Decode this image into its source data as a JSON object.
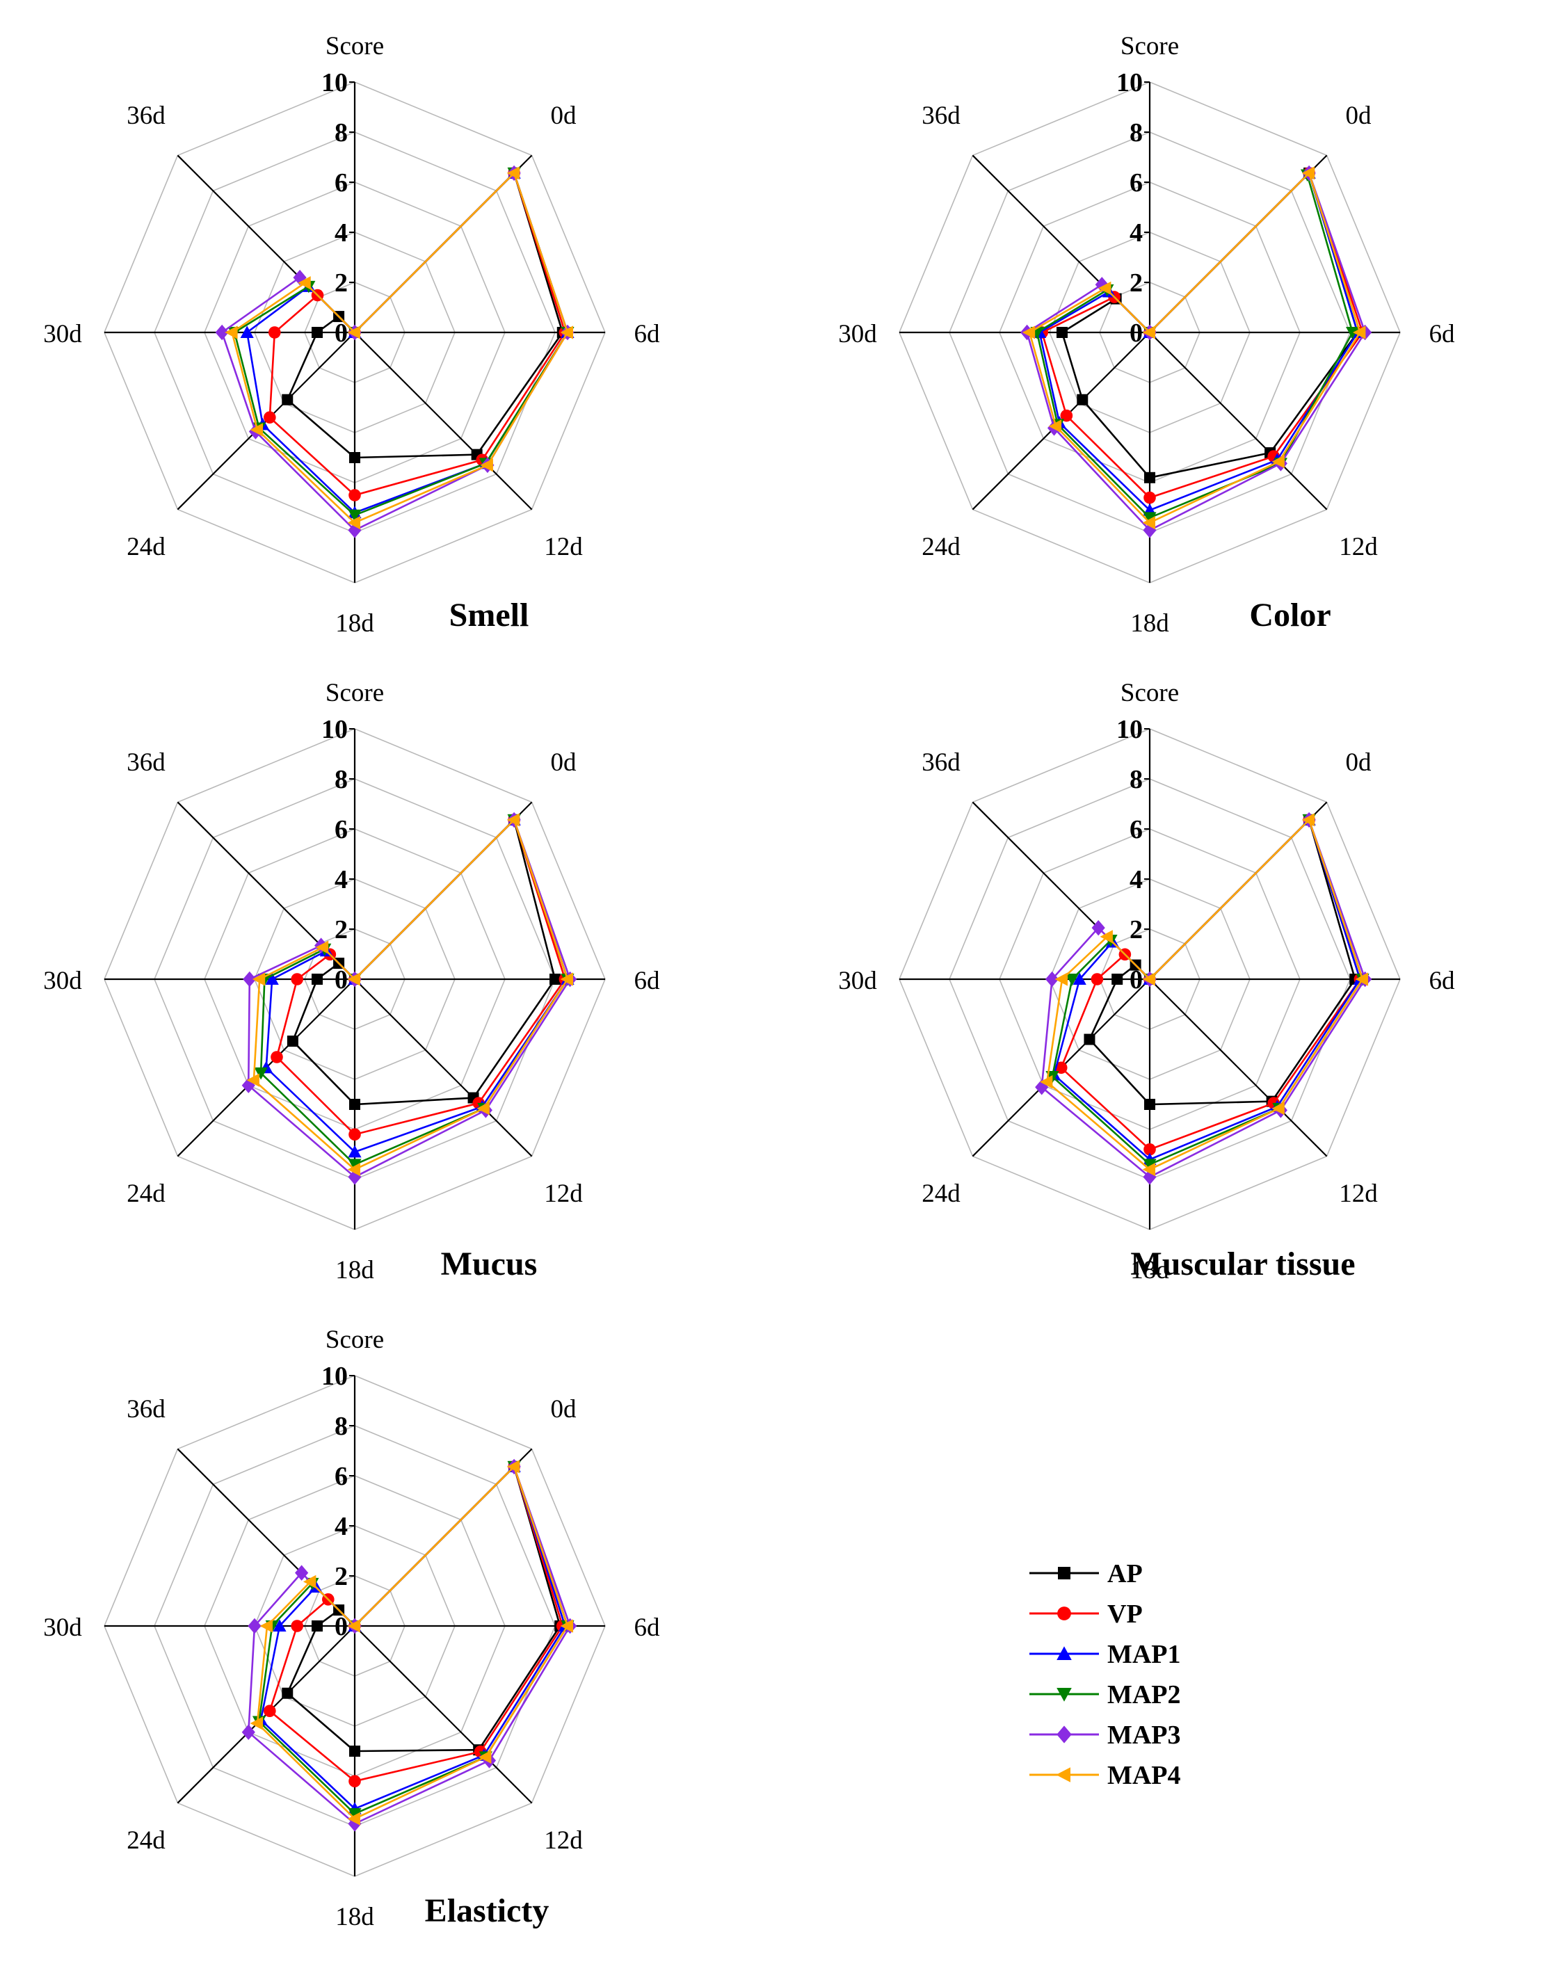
{
  "figure": {
    "score_label": "Score",
    "axis_labels": [
      "0d",
      "6d",
      "12d",
      "18d",
      "24d",
      "30d",
      "36d"
    ],
    "tick_values": [
      0,
      2,
      4,
      6,
      8,
      10
    ],
    "legend": [
      {
        "name": "AP",
        "color": "#000000",
        "marker": "square"
      },
      {
        "name": "VP",
        "color": "#ff0000",
        "marker": "circle"
      },
      {
        "name": "MAP1",
        "color": "#0000ff",
        "marker": "triangle-up"
      },
      {
        "name": "MAP2",
        "color": "#008000",
        "marker": "triangle-down"
      },
      {
        "name": "MAP3",
        "color": "#8a2be2",
        "marker": "diamond"
      },
      {
        "name": "MAP4",
        "color": "#ffa500",
        "marker": "triangle-left"
      }
    ]
  },
  "chart_data": [
    {
      "type": "radar",
      "title": "Smell",
      "axes": [
        "0d",
        "6d",
        "12d",
        "18d",
        "24d",
        "30d",
        "36d"
      ],
      "rlim": [
        0,
        10
      ],
      "series": [
        {
          "name": "AP",
          "values": [
            9.0,
            8.3,
            6.9,
            5.0,
            3.8,
            1.5,
            0.9
          ]
        },
        {
          "name": "VP",
          "values": [
            9.0,
            8.4,
            7.2,
            6.5,
            4.8,
            3.2,
            2.1
          ]
        },
        {
          "name": "MAP1",
          "values": [
            9.0,
            8.5,
            7.4,
            7.2,
            5.2,
            4.3,
            2.6
          ]
        },
        {
          "name": "MAP2",
          "values": [
            9.0,
            8.5,
            7.4,
            7.3,
            5.4,
            4.8,
            2.6
          ]
        },
        {
          "name": "MAP3",
          "values": [
            9.0,
            8.5,
            7.5,
            7.9,
            5.6,
            5.3,
            3.1
          ]
        },
        {
          "name": "MAP4",
          "values": [
            9.0,
            8.5,
            7.5,
            7.6,
            5.5,
            4.9,
            2.8
          ]
        }
      ]
    },
    {
      "type": "radar",
      "title": "Color",
      "axes": [
        "0d",
        "6d",
        "12d",
        "18d",
        "24d",
        "30d",
        "36d"
      ],
      "rlim": [
        0,
        10
      ],
      "series": [
        {
          "name": "AP",
          "values": [
            9.0,
            8.3,
            6.8,
            5.8,
            3.8,
            3.5,
            1.9
          ]
        },
        {
          "name": "VP",
          "values": [
            9.0,
            8.5,
            7.0,
            6.6,
            4.7,
            4.3,
            2.0
          ]
        },
        {
          "name": "MAP1",
          "values": [
            9.0,
            8.3,
            7.2,
            7.1,
            5.1,
            4.4,
            2.3
          ]
        },
        {
          "name": "MAP2",
          "values": [
            8.9,
            8.1,
            7.4,
            7.4,
            5.2,
            4.5,
            2.4
          ]
        },
        {
          "name": "MAP3",
          "values": [
            9.0,
            8.6,
            7.4,
            7.9,
            5.4,
            4.9,
            2.7
          ]
        },
        {
          "name": "MAP4",
          "values": [
            9.0,
            8.4,
            7.3,
            7.6,
            5.3,
            4.8,
            2.5
          ]
        }
      ]
    },
    {
      "type": "radar",
      "title": "Mucus",
      "axes": [
        "0d",
        "6d",
        "12d",
        "18d",
        "24d",
        "30d",
        "36d"
      ],
      "rlim": [
        0,
        10
      ],
      "series": [
        {
          "name": "AP",
          "values": [
            9.0,
            8.0,
            6.7,
            5.0,
            3.5,
            1.5,
            0.9
          ]
        },
        {
          "name": "VP",
          "values": [
            9.0,
            8.4,
            7.0,
            6.2,
            4.4,
            2.3,
            1.4
          ]
        },
        {
          "name": "MAP1",
          "values": [
            9.0,
            8.5,
            7.2,
            6.9,
            5.0,
            3.3,
            1.6
          ]
        },
        {
          "name": "MAP2",
          "values": [
            9.0,
            8.5,
            7.3,
            7.4,
            5.3,
            3.6,
            1.7
          ]
        },
        {
          "name": "MAP3",
          "values": [
            9.0,
            8.6,
            7.4,
            7.9,
            6.0,
            4.2,
            1.9
          ]
        },
        {
          "name": "MAP4",
          "values": [
            9.0,
            8.5,
            7.3,
            7.6,
            5.7,
            3.8,
            1.8
          ]
        }
      ]
    },
    {
      "type": "radar",
      "title": "Muscular tissue",
      "axes": [
        "0d",
        "6d",
        "12d",
        "18d",
        "24d",
        "30d",
        "36d"
      ],
      "rlim": [
        0,
        10
      ],
      "series": [
        {
          "name": "AP",
          "values": [
            9.0,
            8.2,
            6.9,
            5.0,
            3.4,
            1.3,
            0.8
          ]
        },
        {
          "name": "VP",
          "values": [
            9.0,
            8.4,
            7.0,
            6.8,
            5.0,
            2.1,
            1.4
          ]
        },
        {
          "name": "MAP1",
          "values": [
            9.0,
            8.4,
            7.2,
            7.2,
            5.4,
            2.8,
            2.1
          ]
        },
        {
          "name": "MAP2",
          "values": [
            9.0,
            8.5,
            7.3,
            7.4,
            5.5,
            3.1,
            2.2
          ]
        },
        {
          "name": "MAP3",
          "values": [
            9.0,
            8.6,
            7.4,
            7.9,
            6.1,
            3.9,
            2.9
          ]
        },
        {
          "name": "MAP4",
          "values": [
            9.0,
            8.5,
            7.3,
            7.6,
            5.8,
            3.5,
            2.4
          ]
        }
      ]
    },
    {
      "type": "radar",
      "title": "Elasticty",
      "axes": [
        "0d",
        "6d",
        "12d",
        "18d",
        "24d",
        "30d",
        "36d"
      ],
      "rlim": [
        0,
        10
      ],
      "series": [
        {
          "name": "AP",
          "values": [
            9.0,
            8.2,
            7.0,
            5.0,
            3.8,
            1.5,
            0.9
          ]
        },
        {
          "name": "VP",
          "values": [
            9.0,
            8.3,
            7.1,
            6.2,
            4.8,
            2.3,
            1.5
          ]
        },
        {
          "name": "MAP1",
          "values": [
            9.0,
            8.4,
            7.3,
            7.3,
            5.3,
            3.0,
            2.2
          ]
        },
        {
          "name": "MAP2",
          "values": [
            9.0,
            8.5,
            7.4,
            7.5,
            5.4,
            3.3,
            2.4
          ]
        },
        {
          "name": "MAP3",
          "values": [
            9.0,
            8.6,
            7.6,
            7.9,
            6.0,
            4.0,
            3.0
          ]
        },
        {
          "name": "MAP4",
          "values": [
            9.0,
            8.5,
            7.4,
            7.7,
            5.5,
            3.5,
            2.5
          ]
        }
      ]
    }
  ]
}
